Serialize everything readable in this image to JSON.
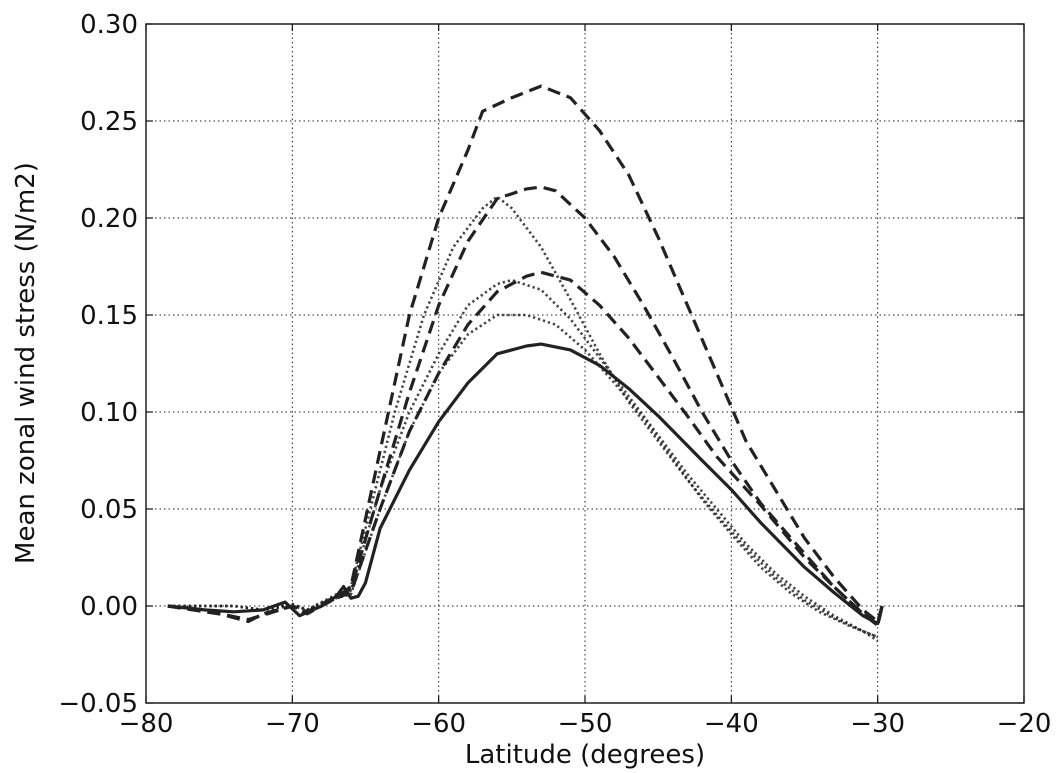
{
  "chart_data": {
    "type": "line",
    "title": "",
    "xlabel": "Latitude (degrees)",
    "ylabel": "Mean zonal wind stress (N/m2)",
    "xlim": [
      -80,
      -20
    ],
    "ylim": [
      -0.05,
      0.3
    ],
    "xticks": [
      -80,
      -70,
      -60,
      -50,
      -40,
      -30,
      -20
    ],
    "yticks": [
      -0.05,
      0.0,
      0.05,
      0.1,
      0.15,
      0.2,
      0.25,
      0.3
    ],
    "xtick_labels": [
      "−80",
      "−70",
      "−60",
      "−50",
      "−40",
      "−30",
      "−20"
    ],
    "ytick_labels": [
      "−0.05",
      "0.00",
      "0.05",
      "0.10",
      "0.15",
      "0.20",
      "0.25",
      "0.30"
    ],
    "grid": true,
    "legend": "none",
    "line_color": "#222222",
    "series": [
      {
        "style": "solid",
        "points": [
          [
            -78.5,
            0.0
          ],
          [
            -76,
            -0.002
          ],
          [
            -74,
            -0.003
          ],
          [
            -72,
            -0.002
          ],
          [
            -70.5,
            0.002
          ],
          [
            -69.5,
            -0.005
          ],
          [
            -68,
            0.0
          ],
          [
            -67,
            0.005
          ],
          [
            -66.5,
            0.01
          ],
          [
            -66,
            0.004
          ],
          [
            -65.5,
            0.005
          ],
          [
            -65,
            0.012
          ],
          [
            -64,
            0.04
          ],
          [
            -62,
            0.07
          ],
          [
            -60,
            0.095
          ],
          [
            -58,
            0.115
          ],
          [
            -56,
            0.13
          ],
          [
            -54,
            0.134
          ],
          [
            -53,
            0.135
          ],
          [
            -51,
            0.132
          ],
          [
            -49,
            0.124
          ],
          [
            -47,
            0.112
          ],
          [
            -45,
            0.098
          ],
          [
            -42,
            0.075
          ],
          [
            -40,
            0.06
          ],
          [
            -38,
            0.043
          ],
          [
            -35,
            0.02
          ],
          [
            -33,
            0.007
          ],
          [
            -31,
            -0.005
          ],
          [
            -30,
            -0.009
          ],
          [
            -29.7,
            0.0
          ]
        ]
      },
      {
        "style": "dashed",
        "points": [
          [
            -78.5,
            0.0
          ],
          [
            -75,
            -0.004
          ],
          [
            -73,
            -0.008
          ],
          [
            -72,
            -0.004
          ],
          [
            -70,
            0.0
          ],
          [
            -69,
            -0.004
          ],
          [
            -67,
            0.004
          ],
          [
            -66,
            0.007
          ],
          [
            -64,
            0.05
          ],
          [
            -62,
            0.09
          ],
          [
            -60,
            0.12
          ],
          [
            -58,
            0.145
          ],
          [
            -56,
            0.162
          ],
          [
            -54,
            0.17
          ],
          [
            -53,
            0.172
          ],
          [
            -51,
            0.168
          ],
          [
            -49,
            0.155
          ],
          [
            -47,
            0.138
          ],
          [
            -45,
            0.118
          ],
          [
            -43,
            0.098
          ],
          [
            -41,
            0.077
          ],
          [
            -38,
            0.052
          ],
          [
            -35,
            0.025
          ],
          [
            -33,
            0.01
          ],
          [
            -31,
            -0.004
          ],
          [
            -30,
            -0.01
          ],
          [
            -29.7,
            0.0
          ]
        ]
      },
      {
        "style": "dashed",
        "points": [
          [
            -78.5,
            0.0
          ],
          [
            -75,
            -0.004
          ],
          [
            -73,
            -0.007
          ],
          [
            -70,
            0.0
          ],
          [
            -69,
            -0.003
          ],
          [
            -67,
            0.005
          ],
          [
            -66,
            0.009
          ],
          [
            -64,
            0.06
          ],
          [
            -62,
            0.11
          ],
          [
            -60,
            0.155
          ],
          [
            -58,
            0.188
          ],
          [
            -56,
            0.21
          ],
          [
            -54,
            0.215
          ],
          [
            -53,
            0.216
          ],
          [
            -52,
            0.214
          ],
          [
            -50,
            0.2
          ],
          [
            -48,
            0.18
          ],
          [
            -46,
            0.155
          ],
          [
            -44,
            0.128
          ],
          [
            -42,
            0.1
          ],
          [
            -40,
            0.075
          ],
          [
            -38,
            0.053
          ],
          [
            -35,
            0.027
          ],
          [
            -33,
            0.01
          ],
          [
            -31,
            -0.004
          ],
          [
            -30,
            -0.01
          ],
          [
            -29.7,
            0.0
          ]
        ]
      },
      {
        "style": "dashed",
        "points": [
          [
            -78.5,
            0.0
          ],
          [
            -75,
            -0.004
          ],
          [
            -73,
            -0.007
          ],
          [
            -70,
            0.0
          ],
          [
            -69,
            -0.003
          ],
          [
            -67,
            0.004
          ],
          [
            -66,
            0.01
          ],
          [
            -64,
            0.08
          ],
          [
            -62,
            0.15
          ],
          [
            -60,
            0.2
          ],
          [
            -58,
            0.235
          ],
          [
            -57,
            0.255
          ],
          [
            -55,
            0.262
          ],
          [
            -53,
            0.268
          ],
          [
            -51,
            0.262
          ],
          [
            -49,
            0.245
          ],
          [
            -47,
            0.222
          ],
          [
            -45,
            0.19
          ],
          [
            -43,
            0.155
          ],
          [
            -41,
            0.12
          ],
          [
            -39,
            0.085
          ],
          [
            -37,
            0.06
          ],
          [
            -35,
            0.035
          ],
          [
            -33,
            0.015
          ],
          [
            -31,
            -0.002
          ],
          [
            -30,
            -0.008
          ],
          [
            -29.7,
            0.0
          ]
        ]
      },
      {
        "style": "dotted",
        "points": [
          [
            -78.5,
            0.0
          ],
          [
            -74,
            0.0
          ],
          [
            -72,
            -0.002
          ],
          [
            -70,
            0.001
          ],
          [
            -69,
            -0.002
          ],
          [
            -67,
            0.004
          ],
          [
            -66,
            0.006
          ],
          [
            -64,
            0.05
          ],
          [
            -62,
            0.09
          ],
          [
            -60,
            0.12
          ],
          [
            -58,
            0.14
          ],
          [
            -56,
            0.15
          ],
          [
            -54,
            0.15
          ],
          [
            -52,
            0.145
          ],
          [
            -50,
            0.132
          ],
          [
            -48,
            0.115
          ],
          [
            -46,
            0.097
          ],
          [
            -44,
            0.076
          ],
          [
            -42,
            0.055
          ],
          [
            -40,
            0.037
          ],
          [
            -38,
            0.02
          ],
          [
            -36,
            0.007
          ],
          [
            -34,
            -0.003
          ],
          [
            -32,
            -0.01
          ],
          [
            -30,
            -0.016
          ]
        ]
      },
      {
        "style": "dotted",
        "points": [
          [
            -78.5,
            0.0
          ],
          [
            -74,
            0.0
          ],
          [
            -72,
            -0.002
          ],
          [
            -70,
            0.001
          ],
          [
            -69,
            -0.002
          ],
          [
            -67,
            0.005
          ],
          [
            -66,
            0.008
          ],
          [
            -64,
            0.06
          ],
          [
            -62,
            0.1
          ],
          [
            -60,
            0.13
          ],
          [
            -58,
            0.155
          ],
          [
            -56,
            0.166
          ],
          [
            -55,
            0.168
          ],
          [
            -53,
            0.163
          ],
          [
            -51,
            0.148
          ],
          [
            -49,
            0.128
          ],
          [
            -47,
            0.108
          ],
          [
            -45,
            0.088
          ],
          [
            -43,
            0.068
          ],
          [
            -41,
            0.05
          ],
          [
            -39,
            0.032
          ],
          [
            -37,
            0.017
          ],
          [
            -35,
            0.005
          ],
          [
            -33,
            -0.005
          ],
          [
            -31,
            -0.013
          ],
          [
            -30,
            -0.018
          ]
        ]
      },
      {
        "style": "dotted",
        "points": [
          [
            -78.5,
            0.0
          ],
          [
            -74,
            0.0
          ],
          [
            -72,
            -0.002
          ],
          [
            -70,
            0.0
          ],
          [
            -69,
            -0.002
          ],
          [
            -67,
            0.006
          ],
          [
            -66,
            0.01
          ],
          [
            -65,
            0.04
          ],
          [
            -63,
            0.1
          ],
          [
            -61,
            0.15
          ],
          [
            -59,
            0.185
          ],
          [
            -57,
            0.205
          ],
          [
            -56,
            0.211
          ],
          [
            -55,
            0.205
          ],
          [
            -53,
            0.185
          ],
          [
            -51,
            0.158
          ],
          [
            -49,
            0.13
          ],
          [
            -47,
            0.105
          ],
          [
            -45,
            0.085
          ],
          [
            -43,
            0.065
          ],
          [
            -41,
            0.047
          ],
          [
            -39,
            0.03
          ],
          [
            -37,
            0.015
          ],
          [
            -35,
            0.003
          ],
          [
            -33,
            -0.006
          ],
          [
            -31,
            -0.013
          ],
          [
            -30,
            -0.016
          ]
        ]
      }
    ]
  }
}
